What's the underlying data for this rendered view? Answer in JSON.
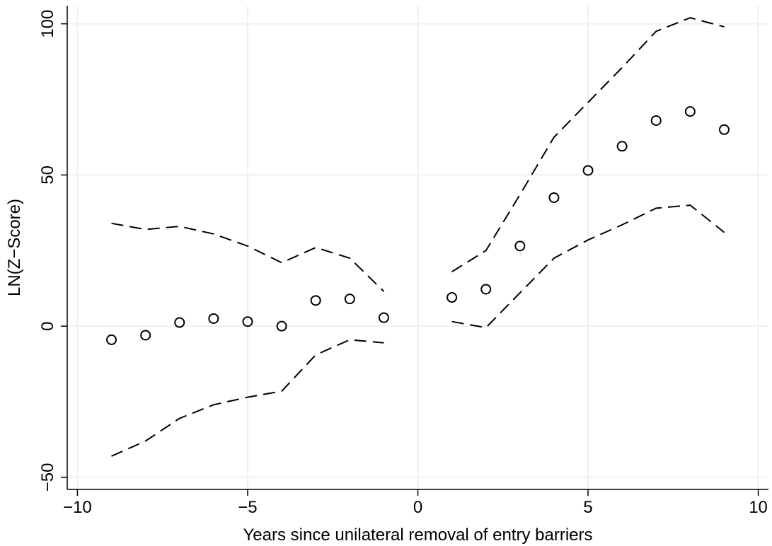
{
  "chart_data": {
    "type": "scatter",
    "title": "",
    "xlabel": "Years since unilateral removal of entry barriers",
    "ylabel": "LN(Z−Score)",
    "xlim": [
      -10.3,
      10.3
    ],
    "ylim": [
      -54,
      106
    ],
    "xticks": [
      -10,
      -5,
      0,
      5,
      10
    ],
    "xtick_labels": [
      "−10",
      "−5",
      "0",
      "5",
      "10"
    ],
    "yticks": [
      -50,
      0,
      50,
      100
    ],
    "ytick_labels": [
      "−50",
      "0",
      "50",
      "100"
    ],
    "grid": true,
    "legend": "none",
    "colors": {
      "grid": "#eaf2f3",
      "marks": "#000000",
      "background": "#ffffff"
    },
    "series": [
      {
        "role": "point estimate",
        "style": "hollow-circle",
        "x": [
          -9,
          -8,
          -7,
          -6,
          -5,
          -4,
          -3,
          -2,
          -1,
          1,
          2,
          3,
          4,
          5,
          6,
          7,
          8,
          9
        ],
        "y": [
          -4.5,
          -3,
          1.2,
          2.5,
          1.5,
          0,
          8.5,
          9,
          2.8,
          9.5,
          12.2,
          26.5,
          42.5,
          51.5,
          59.5,
          68,
          71,
          65
        ]
      },
      {
        "role": "upper confidence bound (pre)",
        "style": "dashed",
        "x": [
          -9,
          -8,
          -7,
          -6,
          -5,
          -4,
          -3,
          -2,
          -1
        ],
        "y": [
          34,
          32,
          33,
          30.5,
          26.5,
          21,
          26,
          22.5,
          11.5
        ]
      },
      {
        "role": "upper confidence bound (post)",
        "style": "dashed",
        "x": [
          1,
          2,
          3,
          4,
          5,
          6,
          7,
          8,
          9
        ],
        "y": [
          18,
          25,
          43.5,
          62.5,
          74,
          85.5,
          97.5,
          102,
          99
        ]
      },
      {
        "role": "lower confidence bound (pre)",
        "style": "dashed",
        "x": [
          -9,
          -8,
          -7,
          -6,
          -5,
          -4,
          -3,
          -2,
          -1
        ],
        "y": [
          -43,
          -38,
          -30.5,
          -26,
          -23.5,
          -21.5,
          -9.5,
          -4.5,
          -5.5
        ]
      },
      {
        "role": "lower confidence bound (post)",
        "style": "dashed",
        "x": [
          1,
          2,
          3,
          4,
          5,
          6,
          7,
          8,
          9
        ],
        "y": [
          1.5,
          -0.5,
          11,
          22.5,
          28.5,
          33.5,
          39,
          40,
          31
        ]
      }
    ]
  }
}
